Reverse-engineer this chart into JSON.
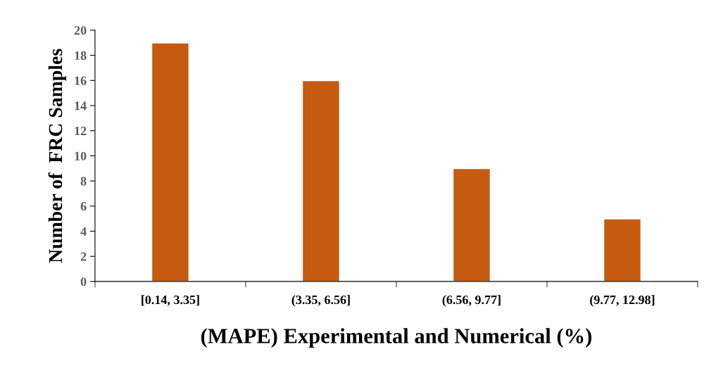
{
  "chart_data": {
    "type": "bar",
    "xlabel": "(MAPE) Experimental and Numerical (%)",
    "ylabel": "Number of  FRC Samples",
    "categories": [
      "[0.14, 3.35]",
      "(3.35, 6.56]",
      "(6.56, 9.77]",
      "(9.77, 12.98]"
    ],
    "values": [
      19,
      16,
      9,
      5
    ],
    "color": "#c55a11",
    "ylim": [
      0,
      20
    ],
    "yticks": [
      0,
      2,
      4,
      6,
      8,
      10,
      12,
      14,
      16,
      18,
      20
    ],
    "grid": false,
    "legend": false
  }
}
